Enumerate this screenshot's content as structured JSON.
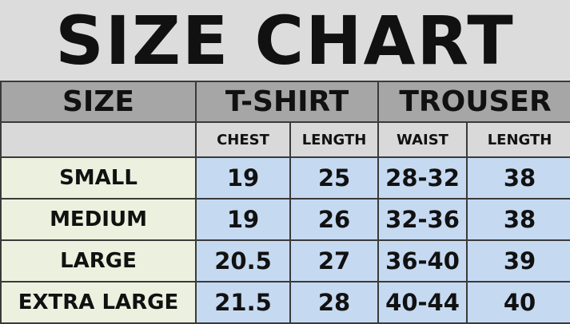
{
  "title": "SIZE CHART",
  "headers": {
    "size": "SIZE",
    "tshirt": "T-SHIRT",
    "trouser": "TROUSER"
  },
  "subheaders": [
    "CHEST",
    "LENGTH",
    "WAIST",
    "LENGTH"
  ],
  "rows": [
    {
      "size": "SMALL",
      "chest": "19",
      "tlength": "25",
      "waist": "28-32",
      "plength": "38"
    },
    {
      "size": "MEDIUM",
      "chest": "19",
      "tlength": "26",
      "waist": "32-36",
      "plength": "38"
    },
    {
      "size": "LARGE",
      "chest": "20.5",
      "tlength": "27",
      "waist": "36-40",
      "plength": "39"
    },
    {
      "size": "EXTRA LARGE",
      "chest": "21.5",
      "tlength": "28",
      "waist": "40-44",
      "plength": "40"
    }
  ],
  "colors": {
    "header": "#a6a6a6",
    "subheader": "#d9d9d9",
    "size_column": "#ebf1de",
    "values": "#c5d9f1"
  }
}
